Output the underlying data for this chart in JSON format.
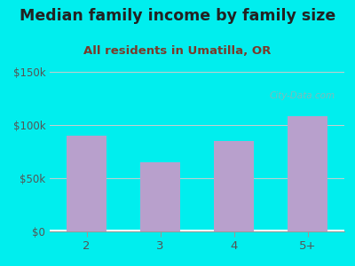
{
  "title": "Median family income by family size",
  "subtitle": "All residents in Umatilla, OR",
  "categories": [
    "2",
    "3",
    "4",
    "5+"
  ],
  "values": [
    90000,
    65000,
    85000,
    108000
  ],
  "bar_color": "#b8a0cc",
  "background_color": "#00EEEE",
  "title_color": "#222222",
  "subtitle_color": "#7a3a2a",
  "tick_color": "#555555",
  "ylim": [
    0,
    150000
  ],
  "yticks": [
    0,
    50000,
    100000,
    150000
  ],
  "ytick_labels": [
    "$0",
    "$50k",
    "$100k",
    "$150k"
  ],
  "title_fontsize": 12.5,
  "subtitle_fontsize": 9.5,
  "watermark": "City-Data.com",
  "grid_color": "#cccccc"
}
